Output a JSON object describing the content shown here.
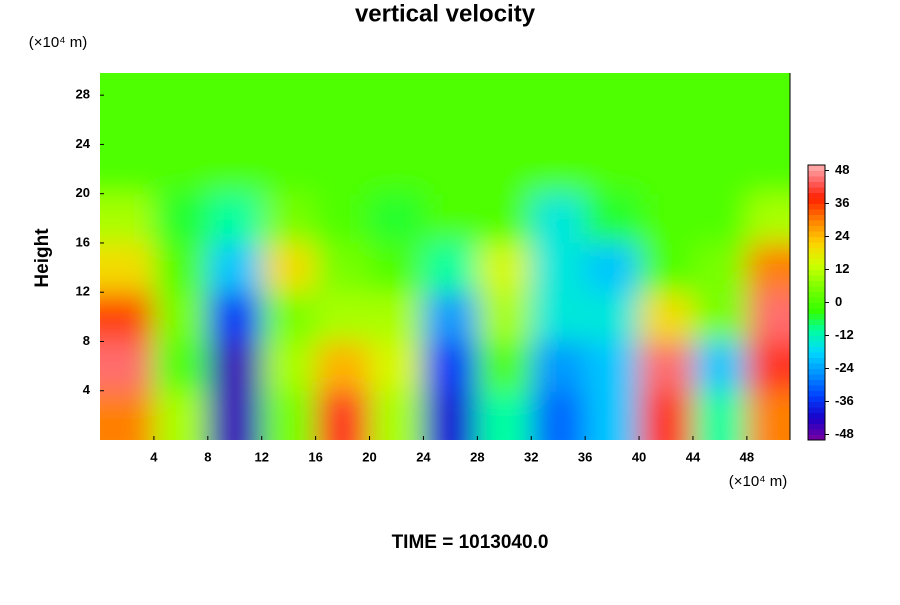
{
  "chart_data": {
    "type": "contour",
    "title": "vertical velocity",
    "ylabel": "Height",
    "yunit": "(×10⁴ m)",
    "xunit": "(×10⁴ m)",
    "footer": "TIME = 1013040.0",
    "x": [
      2,
      6,
      10,
      14,
      18,
      22,
      26,
      30,
      34,
      38,
      42,
      46,
      50
    ],
    "y": [
      2,
      6,
      10,
      14,
      18,
      22,
      26,
      30
    ],
    "z": [
      [
        30,
        10,
        -45,
        5,
        40,
        10,
        -40,
        -10,
        -30,
        -20,
        40,
        -10,
        30
      ],
      [
        45,
        0,
        -45,
        10,
        25,
        15,
        -35,
        0,
        -25,
        -20,
        45,
        -20,
        40
      ],
      [
        35,
        5,
        -35,
        5,
        10,
        10,
        -25,
        10,
        -15,
        -15,
        20,
        5,
        45
      ],
      [
        20,
        0,
        -20,
        20,
        5,
        0,
        -10,
        15,
        -15,
        -20,
        0,
        5,
        30
      ],
      [
        10,
        -5,
        -10,
        5,
        0,
        -5,
        0,
        0,
        -15,
        -5,
        0,
        0,
        10
      ],
      [
        0,
        0,
        0,
        0,
        0,
        0,
        0,
        0,
        0,
        0,
        0,
        0,
        0
      ],
      [
        0,
        0,
        0,
        0,
        0,
        0,
        0,
        0,
        0,
        0,
        0,
        0,
        0
      ],
      [
        0,
        0,
        0,
        0,
        0,
        0,
        0,
        0,
        0,
        0,
        0,
        0,
        0
      ]
    ],
    "xlim": [
      0,
      51.2
    ],
    "ylim": [
      0,
      29.8
    ],
    "xticks": [
      4,
      8,
      12,
      16,
      20,
      24,
      28,
      32,
      36,
      40,
      44,
      48
    ],
    "yticks": [
      4,
      8,
      12,
      16,
      20,
      24,
      28
    ],
    "colorbar": {
      "lim": [
        -50,
        50
      ],
      "ticks": [
        -48,
        -36,
        -24,
        -12,
        0,
        12,
        24,
        36,
        48
      ]
    },
    "colorscale": [
      [
        -50,
        "#7a00a0"
      ],
      [
        -42,
        "#1a00c8"
      ],
      [
        -34,
        "#0040ff"
      ],
      [
        -26,
        "#0090ff"
      ],
      [
        -18,
        "#00d8ff"
      ],
      [
        -10,
        "#00ffa0"
      ],
      [
        -3,
        "#33ff00"
      ],
      [
        6,
        "#80ff00"
      ],
      [
        14,
        "#d0ff00"
      ],
      [
        22,
        "#ffd000"
      ],
      [
        30,
        "#ff8000"
      ],
      [
        38,
        "#ff2000"
      ],
      [
        44,
        "#ff6060"
      ],
      [
        50,
        "#ffb0b0"
      ]
    ]
  }
}
